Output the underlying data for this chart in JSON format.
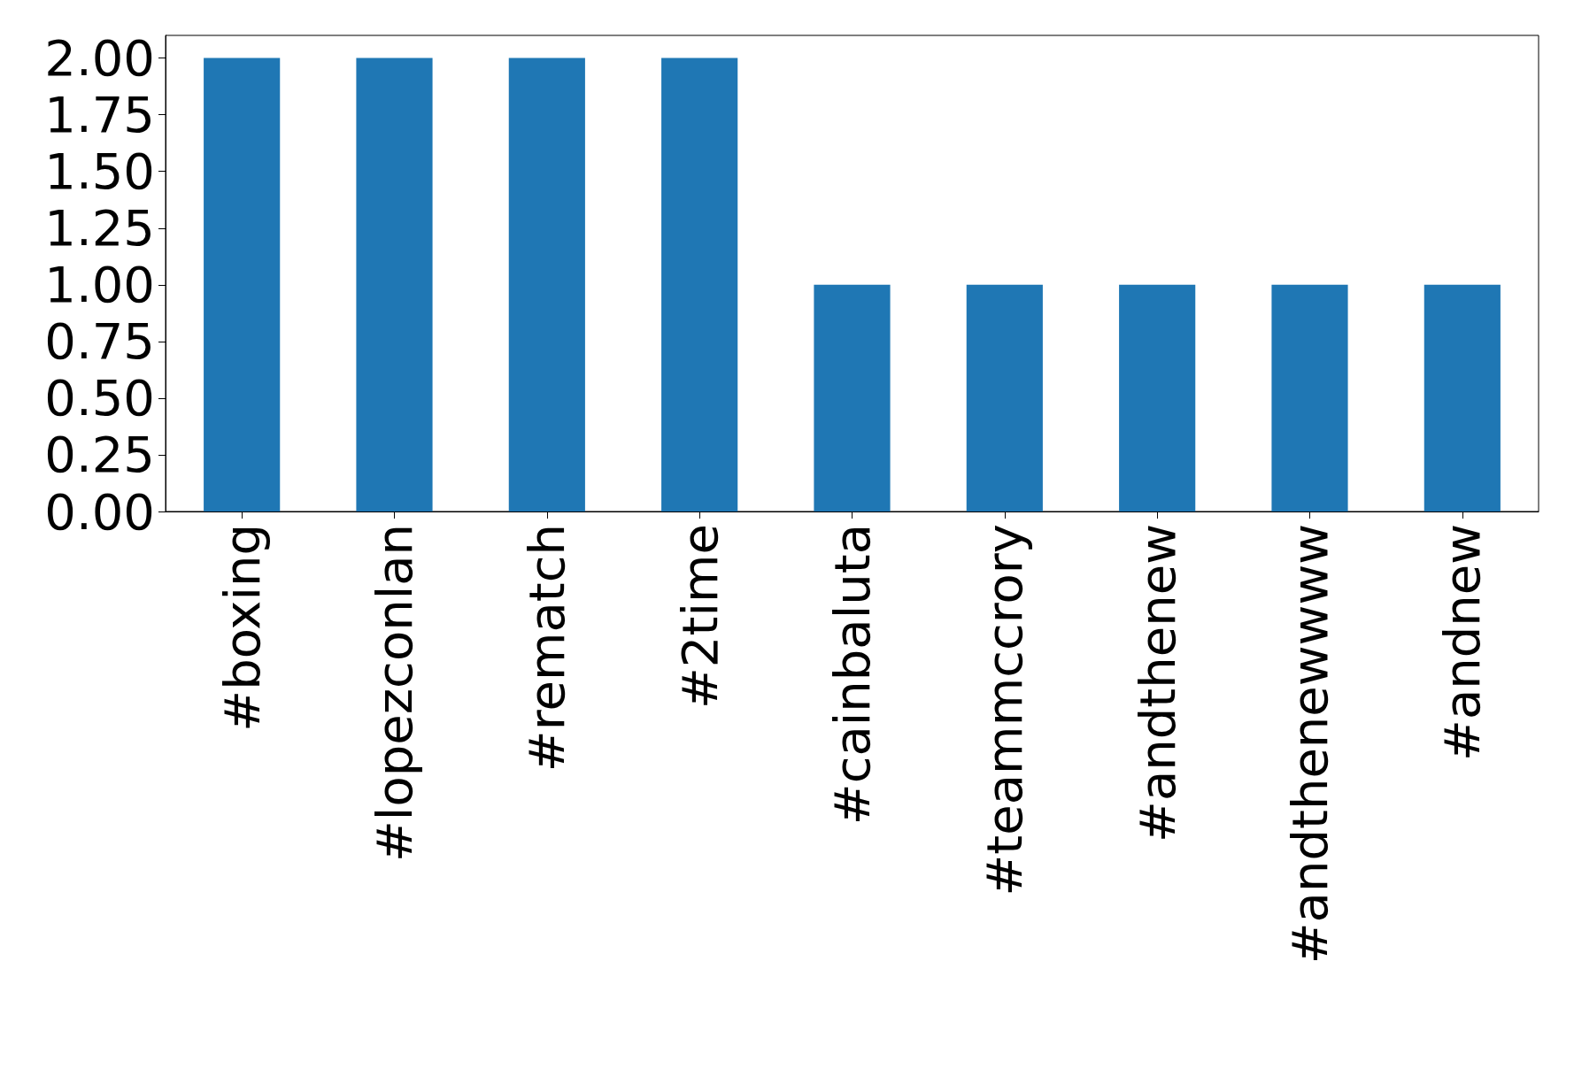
{
  "chart_data": {
    "type": "bar",
    "categories": [
      "#boxing",
      "#lopezconlan",
      "#rematch",
      "#2time",
      "#cainbaluta",
      "#teammccrory",
      "#andthenew",
      "#andthenewwww",
      "#andnew"
    ],
    "values": [
      2,
      2,
      2,
      2,
      1,
      1,
      1,
      1,
      1
    ],
    "color": "#1f77b4",
    "ylim": [
      0,
      2.1
    ],
    "yticks": [
      {
        "value": 0,
        "label": "0.00"
      },
      {
        "value": 0.25,
        "label": "0.25"
      },
      {
        "value": 0.5,
        "label": "0.50"
      },
      {
        "value": 0.75,
        "label": "0.75"
      },
      {
        "value": 1,
        "label": "1.00"
      },
      {
        "value": 1.25,
        "label": "1.25"
      },
      {
        "value": 1.5,
        "label": "1.50"
      },
      {
        "value": 1.75,
        "label": "1.75"
      },
      {
        "value": 2,
        "label": "2.00"
      }
    ],
    "grid": false
  }
}
